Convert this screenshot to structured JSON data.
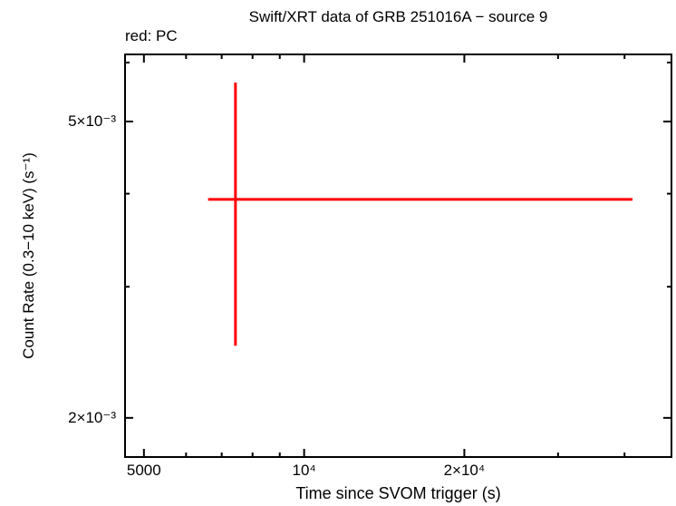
{
  "chart_data": {
    "type": "scatter",
    "title": "Swift/XRT data of GRB 251016A − source 9",
    "annotation": "red: PC",
    "xlabel": "Time since SVOM trigger (s)",
    "ylabel": "Count Rate (0.3−10 keV) (s⁻¹)",
    "x_scale": "log",
    "y_scale": "log",
    "xlim": [
      4590,
      49200
    ],
    "ylim": [
      0.001767,
      0.00617
    ],
    "grid": false,
    "frame_color": "#000000",
    "background_color": "#ffffff",
    "x_axis": {
      "major_ticks": [
        {
          "value": 5000,
          "label": "5000"
        },
        {
          "value": 10000,
          "label": "10⁴"
        },
        {
          "value": 20000,
          "label": "2×10⁴"
        }
      ],
      "minor_ticks": [
        6000,
        7000,
        8000,
        9000,
        30000,
        40000
      ]
    },
    "y_axis": {
      "major_ticks": [
        {
          "value": 0.002,
          "label": "2×10⁻³"
        },
        {
          "value": 0.005,
          "label": "5×10⁻³"
        }
      ],
      "minor_ticks": [
        0.003,
        0.004,
        0.006
      ]
    },
    "series": [
      {
        "name": "PC",
        "color": "#ff0000",
        "points": [
          {
            "t": 7430,
            "t_lo": 6600,
            "t_hi": 41400,
            "rate": 0.00393,
            "rate_lo": 0.0025,
            "rate_hi": 0.00564
          }
        ]
      }
    ]
  }
}
